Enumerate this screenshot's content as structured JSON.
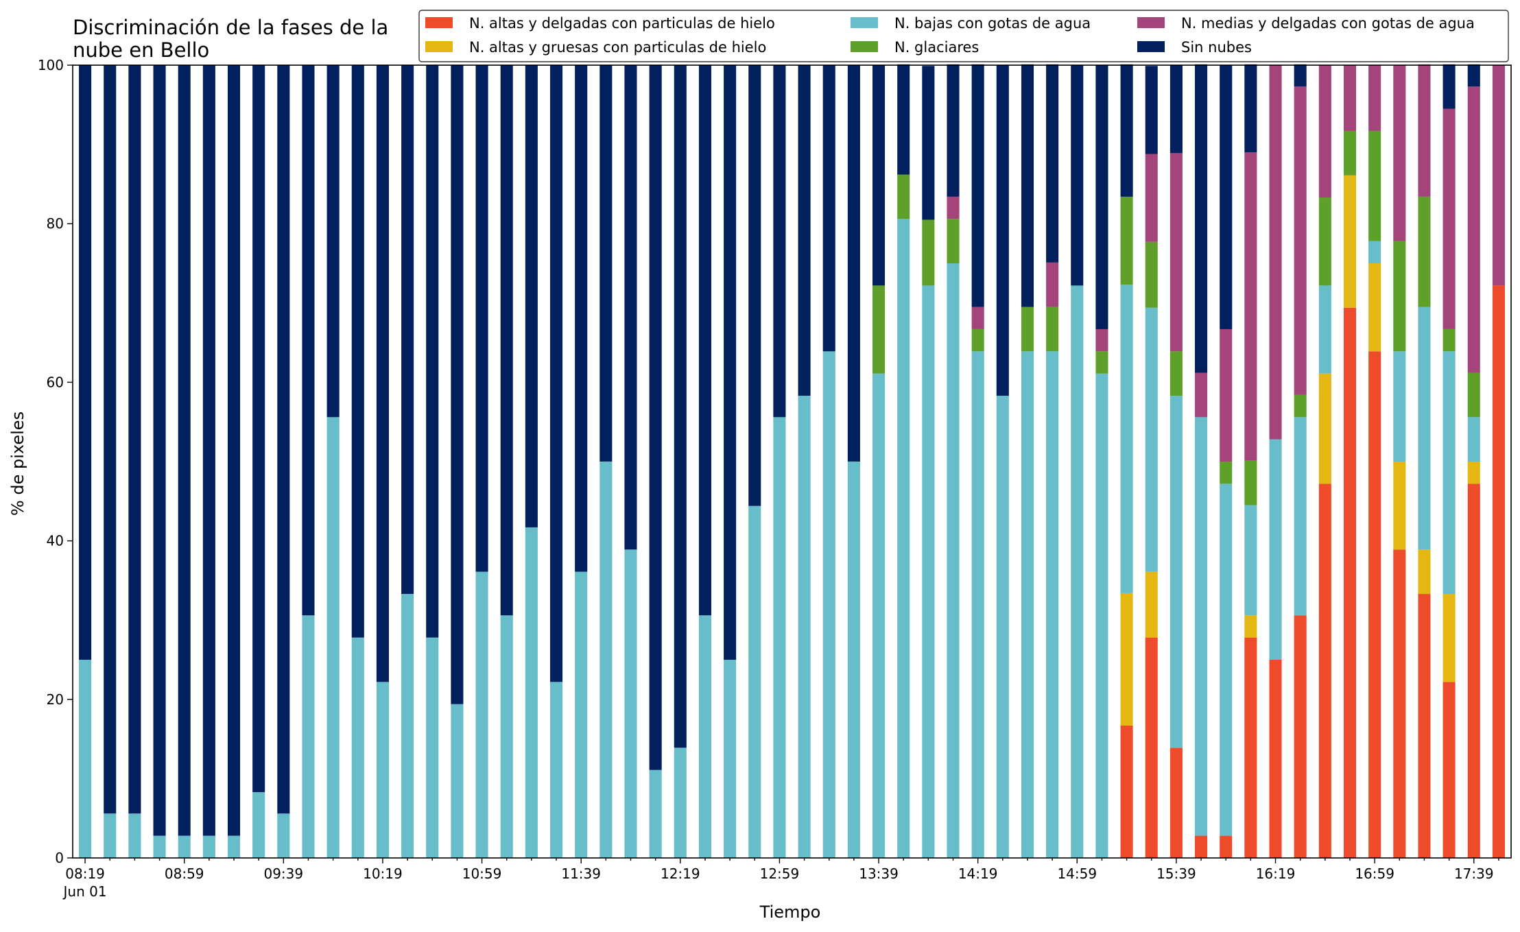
{
  "chart_data": {
    "type": "bar",
    "stacked": true,
    "title_lines": [
      "Discriminación de la fases de la",
      "nube en Bello"
    ],
    "xlabel": "Tiempo",
    "ylabel": "% de pixeles",
    "ylim": [
      0,
      100
    ],
    "yticks": [
      "0",
      "20",
      "40",
      "60",
      "80",
      "100"
    ],
    "x_tick_labels": [
      "08:19",
      "08:59",
      "09:39",
      "10:19",
      "10:59",
      "11:39",
      "12:19",
      "12:59",
      "13:39",
      "14:19",
      "14:59",
      "15:39",
      "16:19",
      "16:59",
      "17:39"
    ],
    "x_date_label": "Jun 01",
    "grid": false,
    "legend_placement": "top-right",
    "series": [
      {
        "name": "N. altas y delgadas con particulas de hielo",
        "color": "#ee4b2b",
        "values": [
          0,
          0,
          0,
          0,
          0,
          0,
          0,
          0,
          0,
          0,
          0,
          0,
          0,
          0,
          0,
          0,
          0,
          0,
          0,
          0,
          0,
          0,
          0,
          0,
          0,
          0,
          0,
          0,
          0,
          0,
          0,
          0,
          0,
          0,
          0,
          0,
          0,
          0,
          0,
          0,
          0,
          0,
          16.7,
          27.8,
          13.9,
          2.8,
          2.8,
          27.8,
          25,
          30.6,
          47.2,
          69.4,
          63.9,
          38.9,
          33.3,
          22.2,
          47.2,
          72.2
        ]
      },
      {
        "name": "N. altas y gruesas con particulas de hielo",
        "color": "#e5b712",
        "values": [
          0,
          0,
          0,
          0,
          0,
          0,
          0,
          0,
          0,
          0,
          0,
          0,
          0,
          0,
          0,
          0,
          0,
          0,
          0,
          0,
          0,
          0,
          0,
          0,
          0,
          0,
          0,
          0,
          0,
          0,
          0,
          0,
          0,
          0,
          0,
          0,
          0,
          0,
          0,
          0,
          0,
          0,
          16.7,
          8.3,
          0,
          0,
          0,
          2.8,
          0,
          0,
          13.9,
          16.7,
          11.1,
          11.1,
          5.6,
          11.1,
          2.8,
          0
        ]
      },
      {
        "name": "N. bajas con gotas de agua",
        "color": "#67bdc9",
        "values": [
          25,
          5.6,
          5.6,
          2.8,
          2.8,
          2.8,
          2.8,
          8.3,
          5.6,
          30.6,
          55.6,
          27.8,
          22.2,
          33.3,
          27.8,
          19.4,
          36.1,
          30.6,
          41.7,
          22.2,
          36.1,
          50,
          38.9,
          11.1,
          13.9,
          30.6,
          25,
          44.4,
          55.6,
          58.3,
          63.9,
          50,
          61.1,
          80.6,
          72.2,
          75,
          63.9,
          58.3,
          63.9,
          63.9,
          72.2,
          61.1,
          38.9,
          33.3,
          44.4,
          52.8,
          44.4,
          13.9,
          27.8,
          25,
          11.1,
          0,
          2.8,
          13.9,
          30.6,
          30.6,
          5.6,
          0
        ]
      },
      {
        "name": "N. glaciares",
        "color": "#5ea02a",
        "values": [
          0,
          0,
          0,
          0,
          0,
          0,
          0,
          0,
          0,
          0,
          0,
          0,
          0,
          0,
          0,
          0,
          0,
          0,
          0,
          0,
          0,
          0,
          0,
          0,
          0,
          0,
          0,
          0,
          0,
          0,
          0,
          0,
          11.1,
          5.6,
          8.3,
          5.6,
          2.8,
          0,
          5.6,
          5.6,
          0,
          2.8,
          11.1,
          8.3,
          5.6,
          0,
          2.8,
          5.6,
          0,
          2.8,
          11.1,
          5.6,
          13.9,
          13.9,
          13.9,
          2.8,
          5.6,
          0
        ]
      },
      {
        "name": "N. medias y delgadas con gotas de agua",
        "color": "#a3457a",
        "values": [
          0,
          0,
          0,
          0,
          0,
          0,
          0,
          0,
          0,
          0,
          0,
          0,
          0,
          0,
          0,
          0,
          0,
          0,
          0,
          0,
          0,
          0,
          0,
          0,
          0,
          0,
          0,
          0,
          0,
          0,
          0,
          0,
          0,
          0,
          0,
          2.8,
          2.8,
          0,
          0,
          5.6,
          0,
          2.8,
          0,
          11.1,
          25,
          5.6,
          16.7,
          38.9,
          47.2,
          38.9,
          16.7,
          8.3,
          8.3,
          22.2,
          16.7,
          27.8,
          36.1,
          27.8
        ]
      },
      {
        "name": "Sin nubes",
        "color": "#021f5e",
        "values": [
          75,
          94.4,
          94.4,
          97.2,
          97.2,
          97.2,
          97.2,
          91.7,
          94.4,
          69.4,
          44.4,
          72.2,
          77.8,
          66.7,
          72.2,
          80.6,
          63.9,
          69.4,
          58.3,
          77.8,
          63.9,
          50,
          61.1,
          88.9,
          86.1,
          69.4,
          75,
          55.6,
          44.4,
          41.7,
          36.1,
          50,
          27.8,
          13.9,
          19.4,
          16.7,
          30.6,
          41.7,
          30.6,
          25,
          27.8,
          33.3,
          16.7,
          11.1,
          11.1,
          38.9,
          33.3,
          11.1,
          0,
          2.8,
          0,
          0,
          0,
          0,
          0,
          5.6,
          2.8,
          0
        ]
      }
    ]
  }
}
